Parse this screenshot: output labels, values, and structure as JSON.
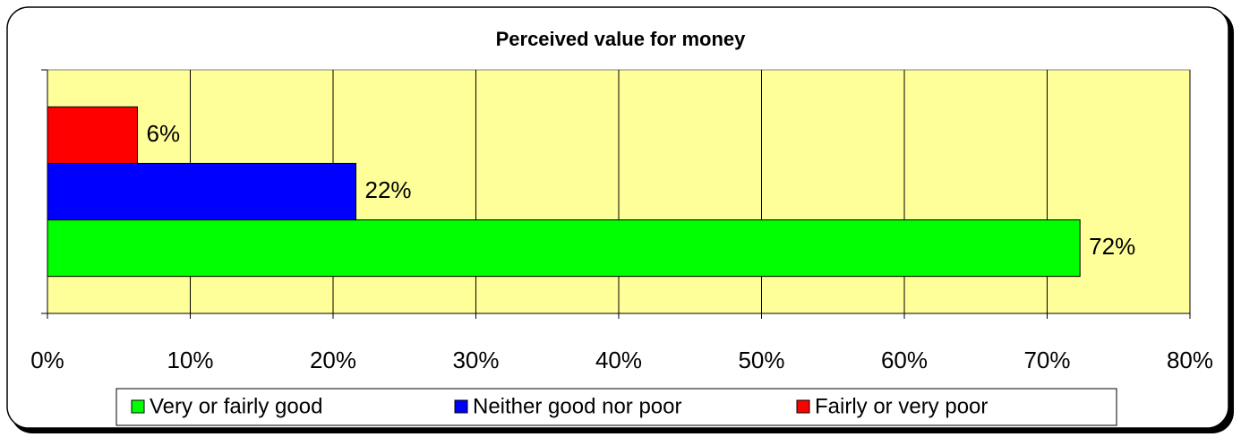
{
  "chart_data": {
    "type": "hbar",
    "title": "Perceived value for money",
    "categories": [
      null
    ],
    "series": [
      {
        "name": "Very or fairly good",
        "color": "#00ff00",
        "values": [
          72.3
        ],
        "value_labels": [
          "72%"
        ]
      },
      {
        "name": "Neither good nor poor",
        "color": "#0000ff",
        "values": [
          21.6
        ],
        "value_labels": [
          "22%"
        ]
      },
      {
        "name": "Fairly or very poor",
        "color": "#ff0000",
        "values": [
          6.3
        ],
        "value_labels": [
          "6%"
        ]
      }
    ],
    "xlim": [
      0,
      80
    ],
    "xticks": [
      {
        "value": 0,
        "label": "0%"
      },
      {
        "value": 10,
        "label": "10%"
      },
      {
        "value": 20,
        "label": "20%"
      },
      {
        "value": 30,
        "label": "30%"
      },
      {
        "value": 40,
        "label": "40%"
      },
      {
        "value": 50,
        "label": "50%"
      },
      {
        "value": 60,
        "label": "60%"
      },
      {
        "value": 70,
        "label": "70%"
      },
      {
        "value": 80,
        "label": "80%"
      }
    ],
    "grid": true,
    "legend": "bottom"
  }
}
